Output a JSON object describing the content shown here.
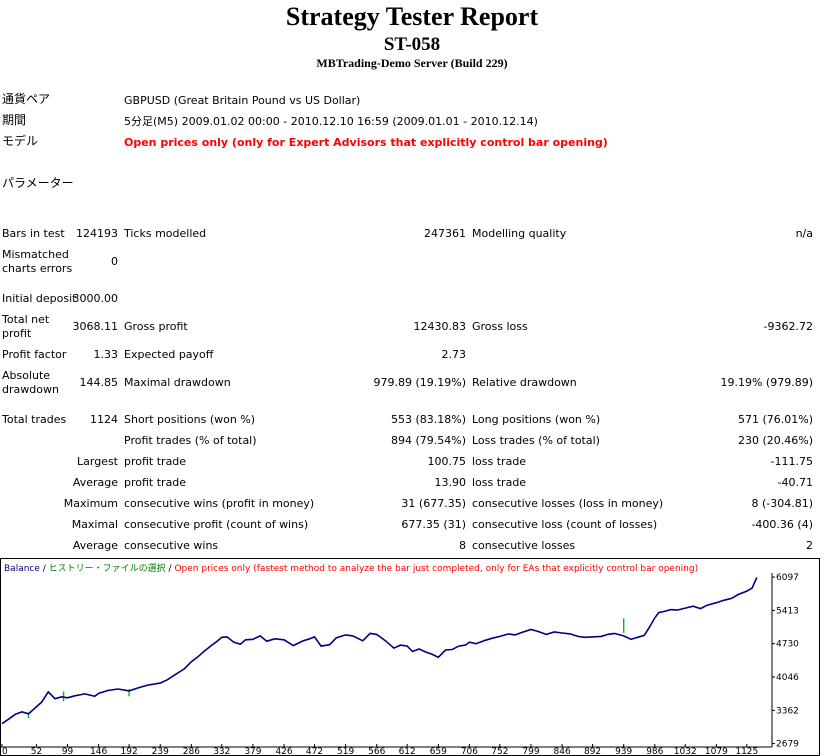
{
  "report": {
    "title": "Strategy Tester Report",
    "subtitle": "ST-058",
    "server": "MBTrading-Demo Server (Build 229)"
  },
  "info": {
    "symbol_label": "通貨ペア",
    "symbol_value": "GBPUSD (Great Britain Pound vs US Dollar)",
    "period_label": "期間",
    "period_value": "5分足(M5) 2009.01.02 00:00 - 2010.12.10 16:59 (2009.01.01 - 2010.12.14)",
    "model_label": "モデル",
    "model_value": "Open prices only (only for Expert Advisors that explicitly control bar opening)",
    "params_label": "パラメーター"
  },
  "stats": {
    "bars_label": "Bars in test",
    "bars_value": "124193",
    "ticks_label": "Ticks modelled",
    "ticks_value": "247361",
    "quality_label": "Modelling quality",
    "quality_value": "n/a",
    "mismatch_label1": "Mismatched",
    "mismatch_label2": "charts errors",
    "mismatch_value": "0",
    "deposit_label": "Initial deposit",
    "deposit_value": "3000.00",
    "netprofit_label1": "Total net",
    "netprofit_label2": "profit",
    "netprofit_value": "3068.11",
    "grossprofit_label": "Gross profit",
    "grossprofit_value": "12430.83",
    "grossloss_label": "Gross loss",
    "grossloss_value": "-9362.72",
    "pf_label": "Profit factor",
    "pf_value": "1.33",
    "payoff_label": "Expected payoff",
    "payoff_value": "2.73",
    "absdd_label1": "Absolute",
    "absdd_label2": "drawdown",
    "absdd_value": "144.85",
    "maxdd_label": "Maximal drawdown",
    "maxdd_value": "979.89 (19.19%)",
    "reldd_label": "Relative drawdown",
    "reldd_value": "19.19% (979.89)",
    "trades_label": "Total trades",
    "trades_value": "1124",
    "short_label": "Short positions (won %)",
    "short_value": "553 (83.18%)",
    "long_label": "Long positions (won %)",
    "long_value": "571 (76.01%)",
    "ptrades_label": "Profit trades (% of total)",
    "ptrades_value": "894 (79.54%)",
    "ltrades_label": "Loss trades (% of total)",
    "ltrades_value": "230 (20.46%)",
    "largest_label": "Largest",
    "largest_p_label": "profit trade",
    "largest_p_value": "100.75",
    "largest_l_label": "loss trade",
    "largest_l_value": "-111.75",
    "average_label": "Average",
    "average_p_label": "profit trade",
    "average_p_value": "13.90",
    "average_l_label": "loss trade",
    "average_l_value": "-40.71",
    "maximum_label": "Maximum",
    "maxwins_label": "consecutive wins (profit in money)",
    "maxwins_value": "31 (677.35)",
    "maxlosses_label": "consecutive losses (loss in money)",
    "maxlosses_value": "8 (-304.81)",
    "maximal_label": "Maximal",
    "maxprofit_label": "consecutive profit (count of wins)",
    "maxprofit_value": "677.35 (31)",
    "maxloss_label": "consecutive loss (count of losses)",
    "maxloss_value": "-400.36 (4)",
    "avg_label": "Average",
    "avgwins_label": "consecutive wins",
    "avgwins_value": "8",
    "avglosses_label": "consecutive losses",
    "avglosses_value": "2"
  },
  "chart_data": {
    "type": "line",
    "legend": {
      "balance": "Balance",
      "sep1": " / ",
      "history": "ヒストリー・ファイルの選択",
      "sep2": " / ",
      "model": "Open prices only (fastest method to analyze the bar just completed, only for EAs that explicitly control bar opening)"
    },
    "colors": {
      "balance": "#000080",
      "history": "#008000",
      "model": "#ff0000",
      "spike": "#00c000"
    },
    "x_ticks": [
      0,
      52,
      99,
      146,
      192,
      239,
      286,
      332,
      379,
      426,
      472,
      519,
      566,
      612,
      659,
      706,
      752,
      799,
      846,
      892,
      939,
      986,
      1032,
      1079,
      1125
    ],
    "y_ticks": [
      2679,
      3362,
      4046,
      4730,
      5413,
      6097
    ],
    "xlim": [
      0,
      1160
    ],
    "ylim": [
      2630,
      6160
    ],
    "series": [
      {
        "x": [
          0,
          10,
          20,
          30,
          40,
          50,
          60,
          70,
          80,
          90,
          99,
          110,
          125,
          140,
          146,
          160,
          175,
          192,
          205,
          220,
          239,
          250,
          262,
          275,
          286,
          295,
          305,
          315,
          325,
          332,
          340,
          350,
          360,
          368,
          379,
          390,
          400,
          412,
          426,
          440,
          455,
          465,
          472,
          482,
          495,
          505,
          519,
          530,
          545,
          556,
          566,
          580,
          592,
          602,
          612,
          620,
          630,
          640,
          650,
          659,
          670,
          680,
          690,
          700,
          706,
          716,
          730,
          740,
          752,
          765,
          775,
          785,
          799,
          810,
          822,
          834,
          846,
          858,
          870,
          880,
          892,
          905,
          915,
          925,
          939,
          950,
          960,
          970,
          978,
          986,
          992,
          1000,
          1010,
          1020,
          1032,
          1044,
          1055,
          1065,
          1079,
          1090,
          1102,
          1112,
          1125,
          1133,
          1140
        ],
        "y": [
          3090,
          3180,
          3280,
          3330,
          3290,
          3410,
          3530,
          3740,
          3600,
          3640,
          3620,
          3660,
          3700,
          3650,
          3710,
          3770,
          3800,
          3760,
          3820,
          3880,
          3920,
          3990,
          4100,
          4210,
          4360,
          4450,
          4570,
          4680,
          4780,
          4860,
          4870,
          4760,
          4720,
          4810,
          4820,
          4890,
          4780,
          4830,
          4810,
          4690,
          4790,
          4830,
          4870,
          4680,
          4710,
          4850,
          4910,
          4890,
          4790,
          4940,
          4920,
          4780,
          4640,
          4700,
          4680,
          4570,
          4620,
          4560,
          4510,
          4450,
          4600,
          4610,
          4680,
          4700,
          4760,
          4730,
          4800,
          4840,
          4880,
          4930,
          4910,
          4960,
          5020,
          4980,
          4920,
          4970,
          4950,
          4930,
          4880,
          4860,
          4870,
          4880,
          4920,
          4940,
          4890,
          4820,
          4860,
          4900,
          5070,
          5260,
          5370,
          5390,
          5430,
          5420,
          5460,
          5500,
          5450,
          5520,
          5570,
          5620,
          5660,
          5740,
          5810,
          5870,
          6090
        ]
      }
    ]
  }
}
